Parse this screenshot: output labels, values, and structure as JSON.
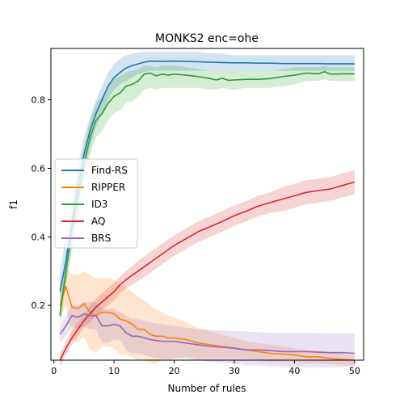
{
  "chart_data": {
    "type": "line",
    "title": "MONKS2 enc=ohe",
    "xlabel": "Number of rules",
    "ylabel": "f1",
    "xlim": [
      -0.5,
      51.5
    ],
    "ylim": [
      0.04,
      0.95
    ],
    "xticks": [
      0,
      10,
      20,
      30,
      40,
      50
    ],
    "yticks": [
      0.2,
      0.4,
      0.6,
      0.8
    ],
    "grid": false,
    "legend_position": "center-left",
    "series": [
      {
        "name": "Find-RS",
        "color": "#1f77b4",
        "x": [
          1,
          2,
          3,
          4,
          5,
          6,
          7,
          8,
          9,
          10,
          11,
          12,
          13,
          14,
          15,
          16,
          18,
          20,
          22,
          24,
          26,
          28,
          30,
          32,
          34,
          36,
          38,
          40,
          42,
          44,
          46,
          48,
          50
        ],
        "y": [
          0.24,
          0.33,
          0.44,
          0.55,
          0.64,
          0.71,
          0.76,
          0.8,
          0.84,
          0.865,
          0.88,
          0.893,
          0.9,
          0.905,
          0.91,
          0.913,
          0.912,
          0.913,
          0.912,
          0.911,
          0.91,
          0.909,
          0.908,
          0.908,
          0.907,
          0.907,
          0.906,
          0.906,
          0.906,
          0.906,
          0.905,
          0.905,
          0.905
        ],
        "upper": [
          0.3,
          0.4,
          0.51,
          0.61,
          0.69,
          0.75,
          0.8,
          0.84,
          0.88,
          0.905,
          0.92,
          0.93,
          0.935,
          0.938,
          0.94,
          0.94,
          0.94,
          0.94,
          0.94,
          0.94,
          0.935,
          0.935,
          0.93,
          0.93,
          0.93,
          0.93,
          0.93,
          0.93,
          0.93,
          0.93,
          0.93,
          0.93,
          0.93
        ],
        "lower": [
          0.18,
          0.26,
          0.37,
          0.48,
          0.58,
          0.66,
          0.72,
          0.76,
          0.8,
          0.83,
          0.845,
          0.855,
          0.865,
          0.875,
          0.88,
          0.885,
          0.885,
          0.885,
          0.885,
          0.885,
          0.885,
          0.885,
          0.885,
          0.885,
          0.885,
          0.885,
          0.885,
          0.885,
          0.885,
          0.885,
          0.885,
          0.885,
          0.885
        ]
      },
      {
        "name": "RIPPER",
        "color": "#ff7f0e",
        "x": [
          1,
          2,
          3,
          4,
          5,
          6,
          7,
          8,
          9,
          10,
          11,
          12,
          13,
          14,
          15,
          16,
          17,
          18,
          19,
          20,
          22,
          24,
          26,
          28,
          30,
          32,
          34,
          36,
          38,
          40,
          42,
          44,
          46,
          48,
          50
        ],
        "y": [
          0.2,
          0.255,
          0.195,
          0.19,
          0.205,
          0.18,
          0.17,
          0.18,
          0.18,
          0.175,
          0.16,
          0.155,
          0.145,
          0.13,
          0.13,
          0.115,
          0.11,
          0.11,
          0.105,
          0.105,
          0.1,
          0.09,
          0.085,
          0.08,
          0.075,
          0.07,
          0.065,
          0.06,
          0.058,
          0.055,
          0.05,
          0.05,
          0.045,
          0.042,
          0.04
        ],
        "upper": [
          0.24,
          0.31,
          0.29,
          0.29,
          0.3,
          0.29,
          0.28,
          0.28,
          0.28,
          0.275,
          0.265,
          0.255,
          0.24,
          0.225,
          0.215,
          0.2,
          0.19,
          0.18,
          0.17,
          0.165,
          0.15,
          0.135,
          0.125,
          0.115,
          0.105,
          0.095,
          0.09,
          0.085,
          0.08,
          0.075,
          0.07,
          0.068,
          0.062,
          0.058,
          0.055
        ],
        "lower": [
          0.16,
          0.2,
          0.1,
          0.09,
          0.11,
          0.07,
          0.06,
          0.08,
          0.08,
          0.075,
          0.055,
          0.055,
          0.05,
          0.04,
          0.045,
          0.03,
          0.03,
          0.04,
          0.04,
          0.045,
          0.05,
          0.045,
          0.045,
          0.045,
          0.045,
          0.045,
          0.04,
          0.035,
          0.036,
          0.035,
          0.03,
          0.032,
          0.028,
          0.026,
          0.025
        ]
      },
      {
        "name": "ID3",
        "color": "#2ca02c",
        "x": [
          1,
          2,
          3,
          4,
          5,
          6,
          7,
          8,
          9,
          10,
          11,
          12,
          13,
          14,
          15,
          16,
          17,
          18,
          19,
          20,
          22,
          24,
          26,
          27,
          28,
          29,
          30,
          32,
          34,
          36,
          38,
          40,
          42,
          44,
          45,
          46,
          48,
          50
        ],
        "y": [
          0.17,
          0.3,
          0.42,
          0.52,
          0.61,
          0.69,
          0.74,
          0.76,
          0.79,
          0.81,
          0.82,
          0.84,
          0.845,
          0.855,
          0.875,
          0.878,
          0.87,
          0.875,
          0.872,
          0.875,
          0.872,
          0.868,
          0.862,
          0.858,
          0.863,
          0.857,
          0.858,
          0.86,
          0.86,
          0.862,
          0.868,
          0.872,
          0.878,
          0.876,
          0.882,
          0.875,
          0.876,
          0.876
        ],
        "upper": [
          0.2,
          0.34,
          0.47,
          0.57,
          0.66,
          0.74,
          0.79,
          0.81,
          0.84,
          0.86,
          0.87,
          0.88,
          0.885,
          0.89,
          0.9,
          0.9,
          0.895,
          0.9,
          0.9,
          0.9,
          0.895,
          0.89,
          0.885,
          0.885,
          0.885,
          0.885,
          0.885,
          0.885,
          0.885,
          0.885,
          0.89,
          0.895,
          0.895,
          0.895,
          0.9,
          0.895,
          0.895,
          0.895
        ],
        "lower": [
          0.14,
          0.26,
          0.37,
          0.47,
          0.56,
          0.64,
          0.69,
          0.71,
          0.74,
          0.76,
          0.77,
          0.79,
          0.795,
          0.81,
          0.83,
          0.835,
          0.83,
          0.835,
          0.835,
          0.835,
          0.835,
          0.835,
          0.83,
          0.83,
          0.835,
          0.83,
          0.83,
          0.835,
          0.835,
          0.835,
          0.84,
          0.845,
          0.855,
          0.855,
          0.86,
          0.855,
          0.855,
          0.855
        ]
      },
      {
        "name": "AQ",
        "color": "#d62728",
        "x": [
          1,
          2,
          3,
          4,
          5,
          6,
          7,
          8,
          9,
          10,
          11,
          12,
          14,
          16,
          18,
          20,
          22,
          24,
          26,
          28,
          30,
          32,
          34,
          36,
          38,
          40,
          42,
          44,
          46,
          48,
          50
        ],
        "y": [
          0.04,
          0.075,
          0.105,
          0.13,
          0.155,
          0.175,
          0.195,
          0.21,
          0.225,
          0.24,
          0.26,
          0.275,
          0.3,
          0.325,
          0.35,
          0.375,
          0.395,
          0.415,
          0.43,
          0.445,
          0.462,
          0.475,
          0.49,
          0.5,
          0.51,
          0.52,
          0.53,
          0.535,
          0.54,
          0.55,
          0.56
        ],
        "upper": [
          0.06,
          0.095,
          0.125,
          0.15,
          0.175,
          0.2,
          0.22,
          0.235,
          0.25,
          0.265,
          0.285,
          0.3,
          0.33,
          0.355,
          0.38,
          0.405,
          0.425,
          0.445,
          0.46,
          0.475,
          0.492,
          0.505,
          0.52,
          0.53,
          0.545,
          0.555,
          0.565,
          0.57,
          0.575,
          0.585,
          0.595
        ],
        "lower": [
          0.02,
          0.055,
          0.085,
          0.11,
          0.135,
          0.15,
          0.17,
          0.185,
          0.2,
          0.215,
          0.235,
          0.25,
          0.27,
          0.295,
          0.32,
          0.345,
          0.365,
          0.385,
          0.4,
          0.415,
          0.432,
          0.445,
          0.46,
          0.47,
          0.475,
          0.485,
          0.495,
          0.5,
          0.505,
          0.515,
          0.525
        ]
      },
      {
        "name": "BRS",
        "color": "#9467bd",
        "x": [
          1,
          2,
          3,
          4,
          5,
          6,
          7,
          8,
          9,
          10,
          11,
          12,
          13,
          14,
          15,
          16,
          18,
          20,
          22,
          24,
          26,
          28,
          30,
          32,
          34,
          36,
          38,
          40,
          42,
          44,
          46,
          48,
          50
        ],
        "y": [
          0.115,
          0.14,
          0.17,
          0.165,
          0.175,
          0.17,
          0.17,
          0.14,
          0.14,
          0.145,
          0.14,
          0.12,
          0.11,
          0.11,
          0.105,
          0.1,
          0.095,
          0.095,
          0.09,
          0.085,
          0.08,
          0.078,
          0.075,
          0.07,
          0.07,
          0.068,
          0.065,
          0.065,
          0.065,
          0.063,
          0.062,
          0.062,
          0.06
        ],
        "upper": [
          0.14,
          0.17,
          0.2,
          0.2,
          0.21,
          0.21,
          0.21,
          0.19,
          0.19,
          0.19,
          0.18,
          0.17,
          0.16,
          0.16,
          0.155,
          0.15,
          0.145,
          0.14,
          0.135,
          0.13,
          0.128,
          0.126,
          0.125,
          0.123,
          0.122,
          0.12,
          0.12,
          0.12,
          0.12,
          0.119,
          0.118,
          0.118,
          0.118
        ],
        "lower": [
          0.09,
          0.11,
          0.14,
          0.13,
          0.14,
          0.13,
          0.13,
          0.09,
          0.09,
          0.1,
          0.1,
          0.07,
          0.06,
          0.06,
          0.055,
          0.05,
          0.045,
          0.045,
          0.045,
          0.04,
          0.035,
          0.032,
          0.03,
          0.025,
          0.025,
          0.022,
          0.02,
          0.02,
          0.02,
          0.02,
          0.02,
          0.02,
          0.02
        ]
      }
    ]
  }
}
